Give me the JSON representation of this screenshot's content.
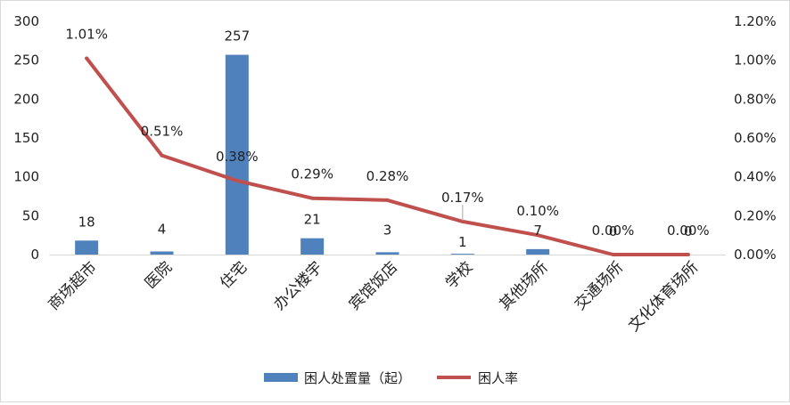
{
  "chart_data": {
    "type": "bar",
    "title": "",
    "categories": [
      "商场超市",
      "医院",
      "住宅",
      "办公楼宇",
      "宾馆饭店",
      "学校",
      "其他场所",
      "交通场所",
      "文化体育场所"
    ],
    "series": [
      {
        "name": "困人处置量（起）",
        "type": "bar",
        "axis": "left",
        "values": [
          18,
          4,
          257,
          21,
          3,
          1,
          7,
          0,
          0
        ],
        "labels": [
          "18",
          "4",
          "257",
          "21",
          "3",
          "1",
          "7",
          "0",
          "0"
        ],
        "color": "#4F81BD"
      },
      {
        "name": "困人率",
        "type": "line",
        "axis": "right",
        "values": [
          1.01,
          0.51,
          0.38,
          0.29,
          0.28,
          0.17,
          0.1,
          0.0,
          0.0
        ],
        "labels": [
          "1.01%",
          "0.51%",
          "0.38%",
          "0.29%",
          "0.28%",
          "0.17%",
          "0.10%",
          "0.00%",
          "0.00%"
        ],
        "color": "#C0504D"
      }
    ],
    "y_left": {
      "min": 0,
      "max": 300,
      "ticks": [
        "0",
        "50",
        "100",
        "150",
        "200",
        "250",
        "300"
      ]
    },
    "y_right": {
      "min": 0,
      "max": 1.2,
      "ticks": [
        "0.00%",
        "0.20%",
        "0.40%",
        "0.60%",
        "0.80%",
        "1.00%",
        "1.20%"
      ]
    },
    "grid": false,
    "legend_position": "bottom"
  }
}
